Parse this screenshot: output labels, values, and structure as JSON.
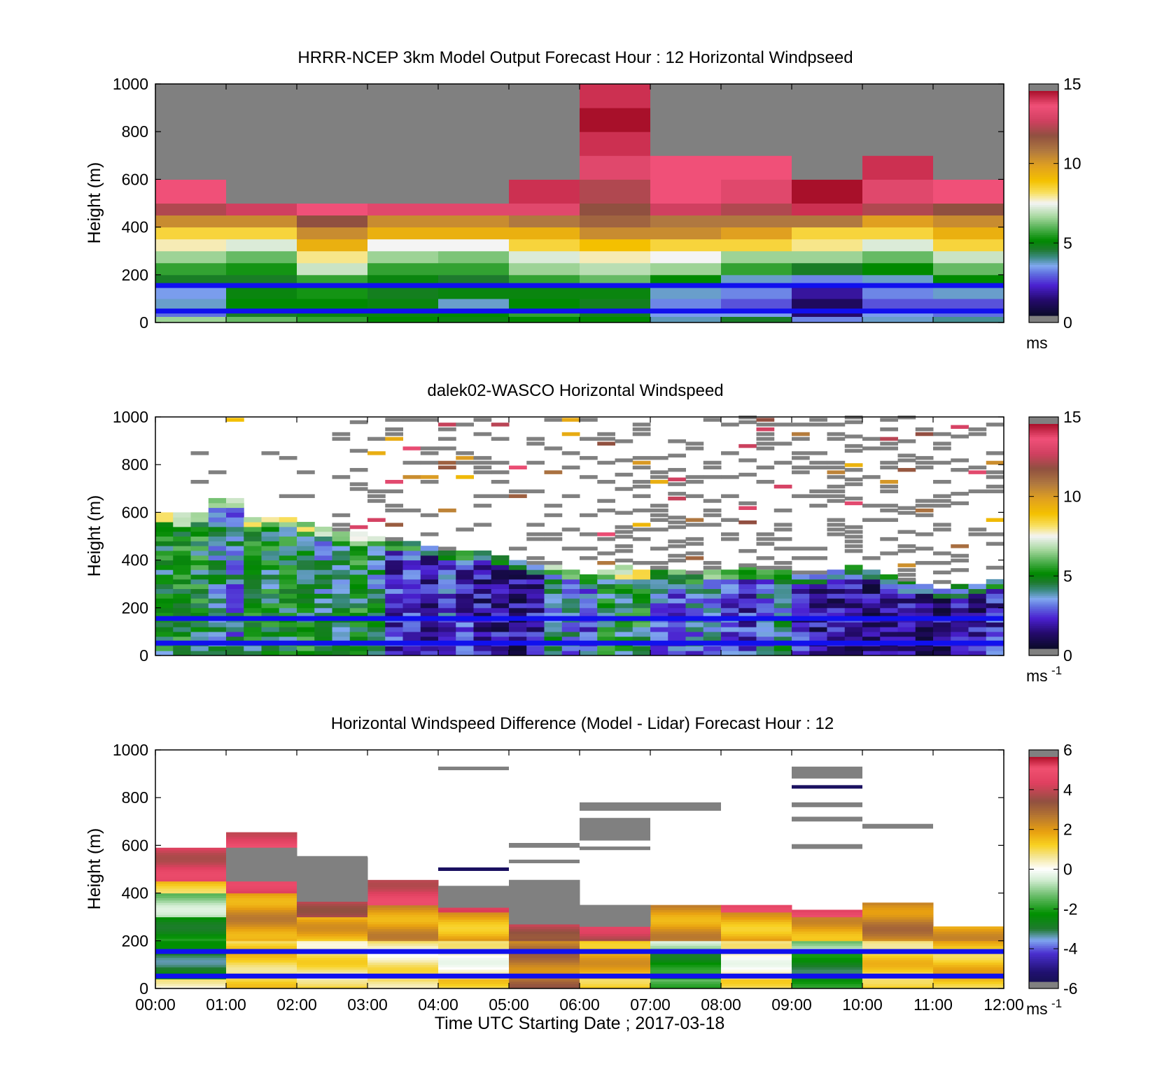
{
  "figure": {
    "xlabel": "Time UTC  Starting Date ; 2017-03-18",
    "x_ticks": [
      "00:00",
      "01:00",
      "02:00",
      "03:00",
      "04:00",
      "05:00",
      "06:00",
      "07:00",
      "08:00",
      "09:00",
      "10:00",
      "11:00",
      "12:00"
    ],
    "y_ticks": [
      "0",
      "200",
      "400",
      "600",
      "800",
      "1000"
    ],
    "ylabel": "Height (m)"
  },
  "chart_data": [
    {
      "type": "heatmap",
      "title": "HRRR-NCEP 3km Model Output   Forecast Hour : 12 Horizontal Windpseed",
      "ylabel": "Height (m)",
      "xlim": [
        0,
        12
      ],
      "ylim": [
        0,
        1000
      ],
      "colorbar": {
        "range": [
          0,
          15
        ],
        "ticks": [
          "0",
          "5",
          "10",
          "15"
        ],
        "unit": "ms"
      },
      "levels": [
        0,
        25,
        50,
        100,
        150,
        200,
        250,
        300,
        350,
        400,
        450,
        500,
        600,
        700,
        800,
        900,
        1000
      ],
      "hours": [
        [
          6.5,
          2.8,
          3.5,
          3.2,
          4.5,
          5.5,
          6.5,
          7.8,
          8.5,
          10.5,
          12.5,
          14.0,
          15.5,
          15.5,
          15.5,
          15.5
        ],
        [
          6.0,
          4.5,
          5.0,
          4.8,
          4.5,
          5.2,
          6.0,
          7.2,
          8.5,
          10.5,
          13.0,
          15.5,
          15.5,
          15.5,
          15.5,
          15.5
        ],
        [
          5.5,
          4.8,
          5.0,
          5.2,
          5.5,
          7.0,
          8.0,
          9.5,
          10.5,
          12.0,
          14.0,
          15.5,
          15.5,
          15.5,
          15.5,
          15.5
        ],
        [
          5.0,
          4.8,
          4.8,
          4.6,
          4.8,
          5.5,
          6.5,
          7.5,
          9.5,
          10.5,
          13.5,
          15.5,
          15.5,
          15.5,
          15.5,
          15.5
        ],
        [
          4.8,
          5.0,
          3.5,
          4.8,
          4.4,
          5.5,
          6.2,
          7.5,
          9.5,
          10.5,
          13.5,
          15.5,
          15.5,
          15.5,
          15.5,
          15.5
        ],
        [
          5.0,
          5.5,
          5.0,
          4.8,
          5.5,
          6.5,
          7.2,
          8.5,
          9.5,
          11.0,
          13.5,
          14.5,
          15.5,
          15.5,
          15.5,
          15.5
        ],
        [
          5.0,
          4.6,
          4.6,
          4.8,
          6.0,
          6.8,
          7.8,
          9.0,
          10.5,
          11.5,
          12.0,
          12.5,
          13.5,
          14.5,
          15.0,
          14.5
        ],
        [
          3.6,
          3.2,
          3.0,
          3.5,
          5.0,
          6.5,
          7.5,
          8.5,
          10.5,
          11.0,
          13.0,
          14.0,
          14.0,
          15.5,
          15.5,
          15.5
        ],
        [
          4.5,
          3.2,
          2.5,
          3.0,
          3.5,
          5.5,
          6.5,
          8.5,
          10.0,
          11.0,
          12.5,
          13.5,
          14.0,
          15.5,
          15.5,
          15.5
        ],
        [
          3.0,
          1.0,
          0.8,
          1.5,
          3.0,
          4.5,
          6.5,
          8.0,
          8.5,
          11.0,
          14.5,
          15.0,
          15.5,
          15.5,
          15.5,
          15.5
        ],
        [
          3.5,
          3.2,
          2.5,
          3.0,
          3.5,
          5.0,
          6.0,
          7.2,
          8.5,
          10.0,
          12.5,
          13.5,
          14.5,
          15.5,
          15.5,
          15.5
        ],
        [
          3.8,
          2.8,
          2.5,
          3.5,
          5.0,
          6.0,
          7.0,
          8.5,
          9.5,
          10.5,
          12.0,
          14.0,
          15.5,
          15.5,
          15.5,
          15.5
        ]
      ],
      "blue_lines": [
        155,
        48
      ]
    },
    {
      "type": "heatmap",
      "title": "dalek02-WASCO  Horizontal Windspeed",
      "ylabel": "Height (m)",
      "xlim": [
        0,
        12
      ],
      "ylim": [
        0,
        1000
      ],
      "colorbar": {
        "range": [
          0,
          15
        ],
        "ticks": [
          "0",
          "5",
          "10",
          "15"
        ],
        "unit": "ms",
        "unit_sup": "-1"
      },
      "bin_hours": 0.25,
      "nbins": 48,
      "gate_m": 20,
      "top_m": [
        600,
        590,
        600,
        660,
        660,
        580,
        580,
        580,
        560,
        540,
        520,
        510,
        500,
        480,
        480,
        460,
        440,
        440,
        440,
        420,
        400,
        380,
        380,
        360,
        340,
        360,
        370,
        360,
        360,
        350,
        340,
        360,
        360,
        370,
        360,
        360,
        340,
        340,
        360,
        370,
        360,
        340,
        310,
        300,
        280,
        290,
        300,
        320
      ],
      "bin_mean": [
        4.6,
        4.8,
        4.8,
        3.6,
        3.3,
        4.5,
        4.6,
        4.6,
        4.7,
        3.8,
        4.3,
        4.7,
        4.0,
        1.9,
        2.2,
        1.8,
        2.5,
        2.2,
        1.6,
        1.5,
        1.2,
        1.7,
        3.7,
        3.1,
        2.8,
        4.5,
        4.6,
        4.7,
        3.0,
        2.6,
        2.9,
        3.0,
        2.5,
        2.2,
        3.0,
        3.8,
        1.8,
        1.5,
        1.4,
        1.6,
        1.2,
        1.6,
        1.6,
        1.1,
        1.2,
        1.3,
        1.4,
        2.0
      ],
      "sparse_upper": "scattered high-altitude returns (mostly gray, values above 15 ms-1) between 400 m and 1000 m",
      "blue_lines": [
        155,
        52
      ]
    },
    {
      "type": "heatmap",
      "title": "Horizontal Windspeed Difference (Model - Lidar) Forecast Hour : 12",
      "ylabel": "Height (m)",
      "xlabel": "Time UTC  Starting Date ; 2017-03-18",
      "xlim": [
        0,
        12
      ],
      "ylim": [
        0,
        1000
      ],
      "colorbar": {
        "range": [
          -6,
          6
        ],
        "ticks": [
          "-6",
          "-4",
          "-2",
          "0",
          "2",
          "4",
          "6"
        ],
        "unit": "ms",
        "unit_sup": "-1"
      },
      "hours": [
        {
          "top": 590,
          "segments": [
            [
              0,
              40,
              0.2
            ],
            [
              40,
              200,
              -3.0
            ],
            [
              200,
              300,
              -2.5
            ],
            [
              300,
              400,
              -1.0
            ],
            [
              400,
              450,
              1.5
            ],
            [
              450,
              590,
              4.5
            ]
          ]
        },
        {
          "top": 655,
          "segments": [
            [
              0,
              40,
              1.0
            ],
            [
              40,
              200,
              1.2
            ],
            [
              200,
              400,
              2.2
            ],
            [
              400,
              450,
              4.5
            ],
            [
              450,
              590,
              6.5
            ],
            [
              590,
              655,
              4.8
            ]
          ]
        },
        {
          "top": 550,
          "segments": [
            [
              0,
              40,
              1.2
            ],
            [
              40,
              200,
              0.8
            ],
            [
              200,
              300,
              1.8
            ],
            [
              300,
              365,
              4.2
            ],
            [
              365,
              520,
              6.5
            ],
            [
              520,
              550,
              6.5
            ]
          ]
        },
        {
          "top": 455,
          "segments": [
            [
              0,
              40,
              1.0
            ],
            [
              40,
              200,
              0.6
            ],
            [
              200,
              350,
              2.2
            ],
            [
              350,
              455,
              4.6
            ]
          ]
        },
        {
          "top": 430,
          "segments": [
            [
              0,
              40,
              1.0
            ],
            [
              40,
              200,
              0.3
            ],
            [
              200,
              320,
              1.8
            ],
            [
              320,
              340,
              5.0
            ],
            [
              340,
              430,
              6.5
            ]
          ]
        },
        {
          "top": 455,
          "segments": [
            [
              0,
              40,
              3.0
            ],
            [
              40,
              200,
              2.8
            ],
            [
              200,
              270,
              4.0
            ],
            [
              270,
              455,
              6.5
            ]
          ]
        },
        {
          "top": 350,
          "segments": [
            [
              0,
              40,
              1.5
            ],
            [
              40,
              200,
              1.8
            ],
            [
              200,
              260,
              4.2
            ],
            [
              260,
              350,
              6.5
            ]
          ]
        },
        {
          "top": 350,
          "segments": [
            [
              0,
              40,
              -1.5
            ],
            [
              40,
              150,
              -2.5
            ],
            [
              150,
              200,
              -0.8
            ],
            [
              200,
              350,
              2.2
            ]
          ]
        },
        {
          "top": 350,
          "segments": [
            [
              0,
              40,
              0.8
            ],
            [
              40,
              200,
              0.3
            ],
            [
              200,
              320,
              1.8
            ],
            [
              320,
              350,
              4.6
            ]
          ]
        },
        {
          "top": 330,
          "segments": [
            [
              0,
              40,
              -2.5
            ],
            [
              40,
              150,
              -2.8
            ],
            [
              150,
              200,
              -1.0
            ],
            [
              200,
              300,
              2.0
            ],
            [
              300,
              330,
              4.8
            ]
          ]
        },
        {
          "top": 360,
          "segments": [
            [
              0,
              40,
              1.5
            ],
            [
              40,
              200,
              1.2
            ],
            [
              200,
              360,
              2.6
            ]
          ]
        },
        {
          "top": 260,
          "segments": [
            [
              0,
              40,
              1.5
            ],
            [
              40,
              200,
              1.5
            ],
            [
              200,
              260,
              2.0
            ]
          ]
        }
      ],
      "overflow_bars": [
        [
          4.0,
          5.0,
          915,
          930
        ],
        [
          5.0,
          6.0,
          590,
          610
        ],
        [
          5.0,
          6.0,
          525,
          540
        ],
        [
          2.0,
          3.0,
          540,
          555
        ],
        [
          6.0,
          8.0,
          745,
          780
        ],
        [
          6.0,
          7.0,
          620,
          715
        ],
        [
          6.0,
          7.0,
          580,
          595
        ],
        [
          9.0,
          10.0,
          880,
          930
        ],
        [
          9.0,
          10.0,
          760,
          780
        ],
        [
          9.0,
          10.0,
          700,
          720
        ],
        [
          9.0,
          10.0,
          585,
          605
        ],
        [
          10.0,
          11.0,
          670,
          690
        ]
      ],
      "line_marks": [
        [
          4.0,
          5.0,
          500,
          -6.2
        ],
        [
          9.0,
          10.0,
          845,
          -6.5
        ]
      ],
      "blue_lines": [
        155,
        52
      ]
    }
  ]
}
